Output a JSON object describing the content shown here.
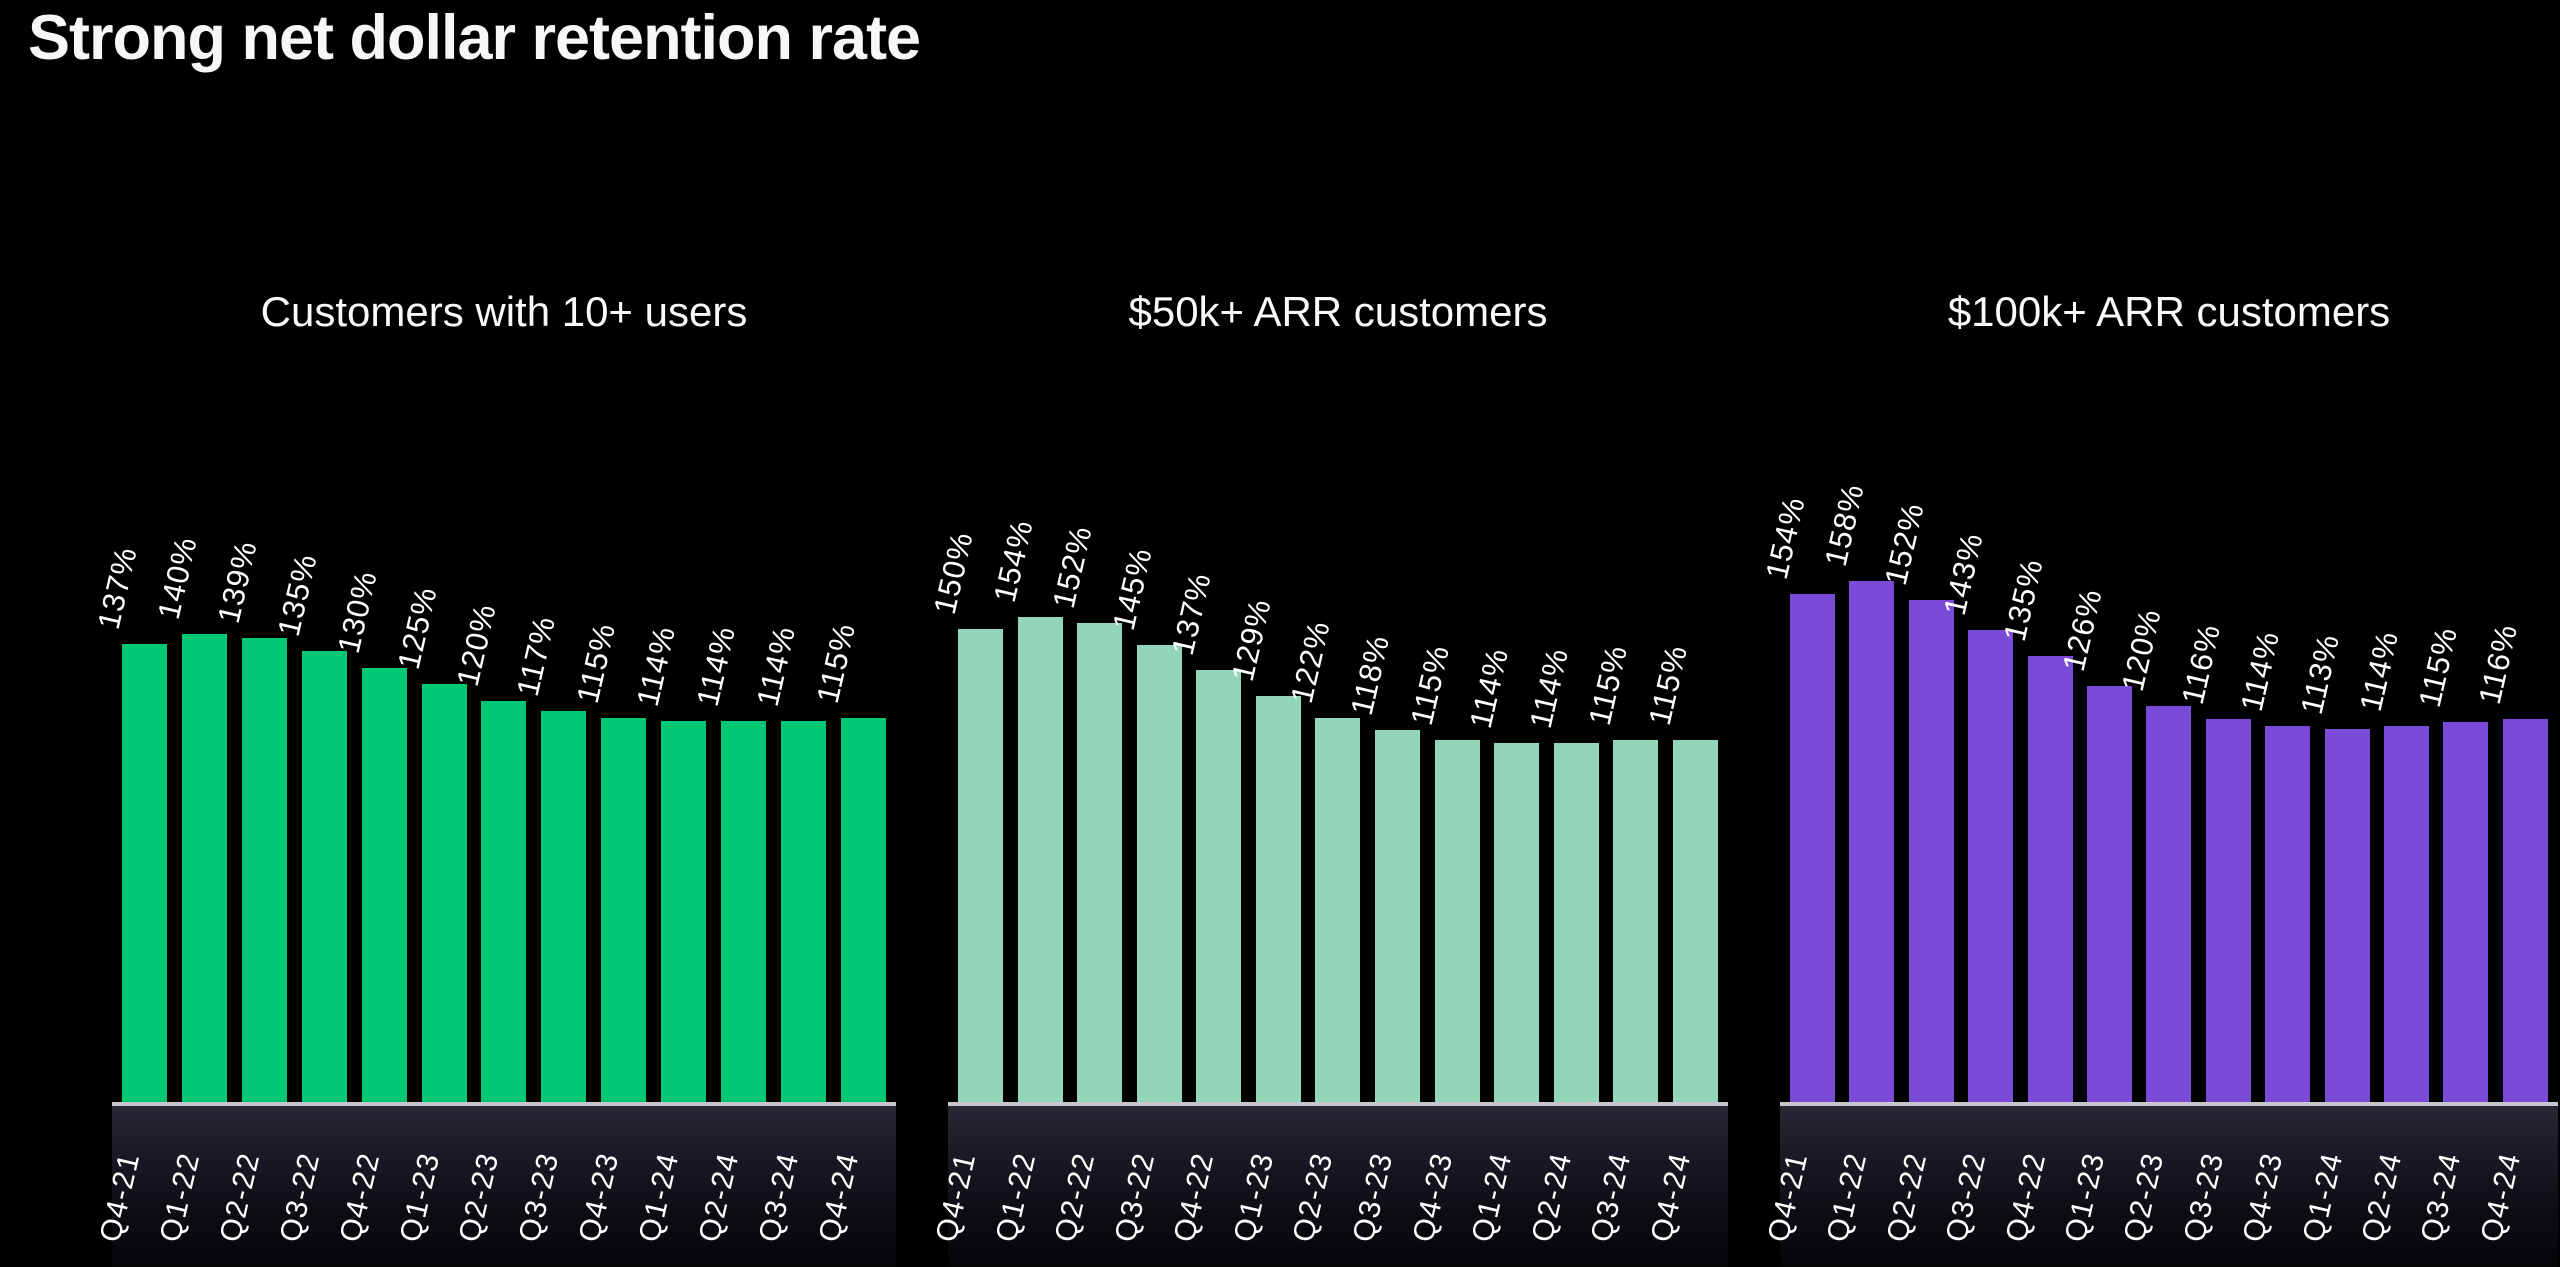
{
  "page_title": "Strong net dollar retention rate",
  "colors": {
    "background": "#000000",
    "title_text": "#f7f7f9",
    "label_text": "#ffffff",
    "baseline": "#c6c6cc",
    "series_green": "#00C875",
    "series_mint": "#93D5B9",
    "series_purple": "#7A4BD6"
  },
  "chart_data": [
    {
      "type": "bar",
      "title": "Customers with 10+ users",
      "color": "#00C875",
      "unit": "%",
      "grid": false,
      "legend": "none",
      "value_labels": "rotated above bars",
      "categories": [
        "Q4-21",
        "Q1-22",
        "Q2-22",
        "Q3-22",
        "Q4-22",
        "Q1-23",
        "Q2-23",
        "Q3-23",
        "Q4-23",
        "Q1-24",
        "Q2-24",
        "Q3-24",
        "Q4-24"
      ],
      "values": [
        137,
        140,
        139,
        135,
        130,
        125,
        120,
        117,
        115,
        114,
        114,
        114,
        115
      ]
    },
    {
      "type": "bar",
      "title": "$50k+ ARR customers",
      "color": "#93D5B9",
      "unit": "%",
      "grid": false,
      "legend": "none",
      "value_labels": "rotated above bars",
      "categories": [
        "Q4-21",
        "Q1-22",
        "Q2-22",
        "Q3-22",
        "Q4-22",
        "Q1-23",
        "Q2-23",
        "Q3-23",
        "Q4-23",
        "Q1-24",
        "Q2-24",
        "Q3-24",
        "Q4-24"
      ],
      "values": [
        150,
        154,
        152,
        145,
        137,
        129,
        122,
        118,
        115,
        114,
        114,
        115,
        115
      ]
    },
    {
      "type": "bar",
      "title": "$100k+ ARR customers",
      "color": "#7A4BD6",
      "unit": "%",
      "grid": false,
      "legend": "none",
      "value_labels": "rotated above bars",
      "categories": [
        "Q4-21",
        "Q1-22",
        "Q2-22",
        "Q3-22",
        "Q4-22",
        "Q1-23",
        "Q2-23",
        "Q3-23",
        "Q4-23",
        "Q1-24",
        "Q2-24",
        "Q3-24",
        "Q4-24"
      ],
      "values": [
        154,
        158,
        152,
        143,
        135,
        126,
        120,
        116,
        114,
        113,
        114,
        115,
        116
      ]
    }
  ]
}
